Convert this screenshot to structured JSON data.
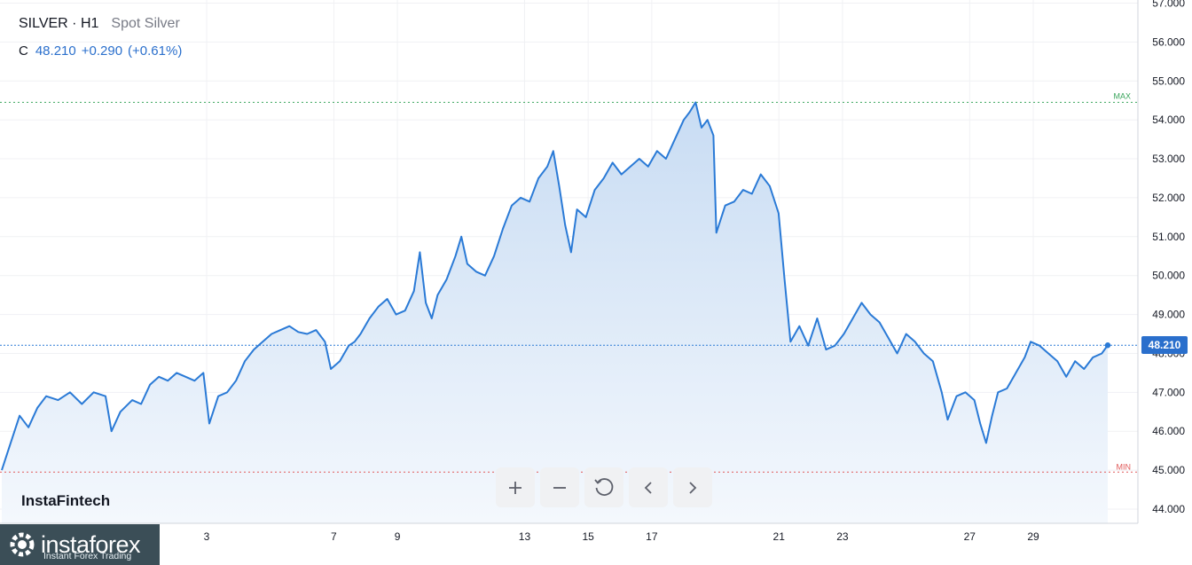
{
  "header": {
    "symbol": "SILVER · H1",
    "description": "Spot Silver",
    "close_label": "C",
    "close_value": "48.210",
    "change": "+0.290",
    "change_pct": "(+0.61%)"
  },
  "watermark": "InstaFintech",
  "logo": {
    "name": "instaforex",
    "tagline": "Instant Forex Trading"
  },
  "toolbar": [
    {
      "name": "zoom-in-button",
      "icon": "plus-icon"
    },
    {
      "name": "zoom-out-button",
      "icon": "minus-icon"
    },
    {
      "name": "reset-button",
      "icon": "reset-icon"
    },
    {
      "name": "scroll-left-button",
      "icon": "chevron-left-icon"
    },
    {
      "name": "scroll-right-button",
      "icon": "chevron-right-icon"
    }
  ],
  "colors": {
    "line": "#2a7ad6",
    "fill_top": "#c8dcf3",
    "fill_bottom": "#f4f8fd",
    "max": "#3aa55c",
    "min": "#e05a5a"
  },
  "chart_data": {
    "type": "area",
    "y_range": [
      43.6,
      57.1
    ],
    "y_ticks": [
      "44.000",
      "45.000",
      "46.000",
      "47.000",
      "48.000",
      "49.000",
      "50.000",
      "51.000",
      "52.000",
      "53.000",
      "54.000",
      "55.000",
      "56.000",
      "57.000"
    ],
    "x_range": [
      0.25,
      31.0
    ],
    "x_ticks": [
      "3",
      "7",
      "9",
      "13",
      "15",
      "17",
      "21",
      "23",
      "27",
      "29"
    ],
    "x_tick_positions": [
      3,
      7,
      9,
      13,
      15,
      17,
      21,
      23,
      27,
      29
    ],
    "max": {
      "label": "MAX",
      "value": 54.45
    },
    "min": {
      "label": "MIN",
      "value": 44.95
    },
    "last": {
      "label": "48.210",
      "value": 48.21
    },
    "grid": true,
    "points": [
      [
        0.25,
        45.0
      ],
      [
        0.4,
        45.7
      ],
      [
        0.55,
        46.4
      ],
      [
        0.7,
        46.1
      ],
      [
        0.85,
        46.6
      ],
      [
        1.0,
        46.9
      ],
      [
        1.2,
        46.8
      ],
      [
        1.4,
        47.0
      ],
      [
        1.6,
        46.7
      ],
      [
        1.8,
        47.0
      ],
      [
        2.0,
        46.9
      ],
      [
        2.1,
        46.0
      ],
      [
        2.25,
        46.5
      ],
      [
        2.45,
        46.8
      ],
      [
        2.6,
        46.7
      ],
      [
        2.75,
        47.2
      ],
      [
        2.9,
        47.4
      ],
      [
        3.05,
        47.3
      ],
      [
        3.2,
        47.5
      ],
      [
        3.35,
        47.4
      ],
      [
        3.5,
        47.3
      ],
      [
        3.65,
        47.5
      ],
      [
        3.75,
        46.2
      ],
      [
        3.9,
        46.9
      ],
      [
        4.05,
        47.0
      ],
      [
        4.2,
        47.3
      ],
      [
        4.35,
        47.8
      ],
      [
        4.5,
        48.1
      ],
      [
        4.65,
        48.3
      ],
      [
        4.8,
        48.5
      ],
      [
        4.95,
        48.6
      ],
      [
        5.1,
        48.7
      ],
      [
        5.25,
        48.55
      ],
      [
        5.4,
        48.5
      ],
      [
        5.55,
        48.6
      ],
      [
        5.7,
        48.3
      ],
      [
        5.8,
        47.6
      ],
      [
        5.95,
        47.8
      ],
      [
        6.1,
        48.2
      ],
      [
        6.2,
        48.3
      ],
      [
        6.3,
        48.5
      ],
      [
        6.45,
        48.9
      ],
      [
        6.6,
        49.2
      ],
      [
        6.75,
        49.4
      ],
      [
        6.9,
        49.0
      ],
      [
        7.05,
        49.1
      ],
      [
        7.2,
        49.6
      ],
      [
        7.3,
        50.6
      ],
      [
        7.4,
        49.3
      ],
      [
        7.5,
        48.9
      ],
      [
        7.6,
        49.5
      ],
      [
        7.75,
        49.9
      ],
      [
        7.9,
        50.5
      ],
      [
        8.0,
        51.0
      ],
      [
        8.1,
        50.3
      ],
      [
        8.25,
        50.1
      ],
      [
        8.4,
        50.0
      ],
      [
        8.55,
        50.5
      ],
      [
        8.7,
        51.2
      ],
      [
        8.85,
        51.8
      ],
      [
        9.0,
        52.0
      ],
      [
        9.15,
        51.9
      ],
      [
        9.3,
        52.5
      ],
      [
        9.45,
        52.8
      ],
      [
        9.55,
        53.2
      ],
      [
        9.65,
        52.3
      ],
      [
        9.75,
        51.3
      ],
      [
        9.85,
        50.6
      ],
      [
        9.95,
        51.7
      ],
      [
        10.1,
        51.5
      ],
      [
        10.25,
        52.2
      ],
      [
        10.4,
        52.5
      ],
      [
        10.55,
        52.9
      ],
      [
        10.7,
        52.6
      ],
      [
        10.85,
        52.8
      ],
      [
        11.0,
        53.0
      ],
      [
        11.15,
        52.8
      ],
      [
        11.3,
        53.2
      ],
      [
        11.45,
        53.0
      ],
      [
        11.6,
        53.5
      ],
      [
        11.75,
        54.0
      ],
      [
        11.85,
        54.2
      ],
      [
        11.95,
        54.45
      ],
      [
        12.05,
        53.8
      ],
      [
        12.15,
        54.0
      ],
      [
        12.25,
        53.6
      ],
      [
        12.3,
        51.1
      ],
      [
        12.45,
        51.8
      ],
      [
        12.6,
        51.9
      ],
      [
        12.75,
        52.2
      ],
      [
        12.9,
        52.1
      ],
      [
        13.05,
        52.6
      ],
      [
        13.2,
        52.3
      ],
      [
        13.35,
        51.6
      ],
      [
        13.45,
        49.9
      ],
      [
        13.55,
        48.3
      ],
      [
        13.7,
        48.7
      ],
      [
        13.85,
        48.2
      ],
      [
        14.0,
        48.9
      ],
      [
        14.15,
        48.1
      ],
      [
        14.3,
        48.2
      ],
      [
        14.45,
        48.5
      ],
      [
        14.6,
        48.9
      ],
      [
        14.75,
        49.3
      ],
      [
        14.9,
        49.0
      ],
      [
        15.05,
        48.8
      ],
      [
        15.2,
        48.4
      ],
      [
        15.35,
        48.0
      ],
      [
        15.5,
        48.5
      ],
      [
        15.65,
        48.3
      ],
      [
        15.8,
        48.0
      ],
      [
        15.95,
        47.8
      ],
      [
        16.1,
        47.0
      ],
      [
        16.2,
        46.3
      ],
      [
        16.35,
        46.9
      ],
      [
        16.5,
        47.0
      ],
      [
        16.65,
        46.8
      ],
      [
        16.75,
        46.2
      ],
      [
        16.85,
        45.7
      ],
      [
        16.95,
        46.4
      ],
      [
        17.05,
        47.0
      ],
      [
        17.2,
        47.1
      ],
      [
        17.35,
        47.5
      ],
      [
        17.5,
        47.9
      ],
      [
        17.6,
        48.3
      ],
      [
        17.75,
        48.2
      ],
      [
        17.9,
        48.0
      ],
      [
        18.05,
        47.8
      ],
      [
        18.2,
        47.4
      ],
      [
        18.35,
        47.8
      ],
      [
        18.5,
        47.6
      ],
      [
        18.65,
        47.9
      ],
      [
        18.8,
        48.0
      ],
      [
        18.9,
        48.21
      ]
    ]
  }
}
